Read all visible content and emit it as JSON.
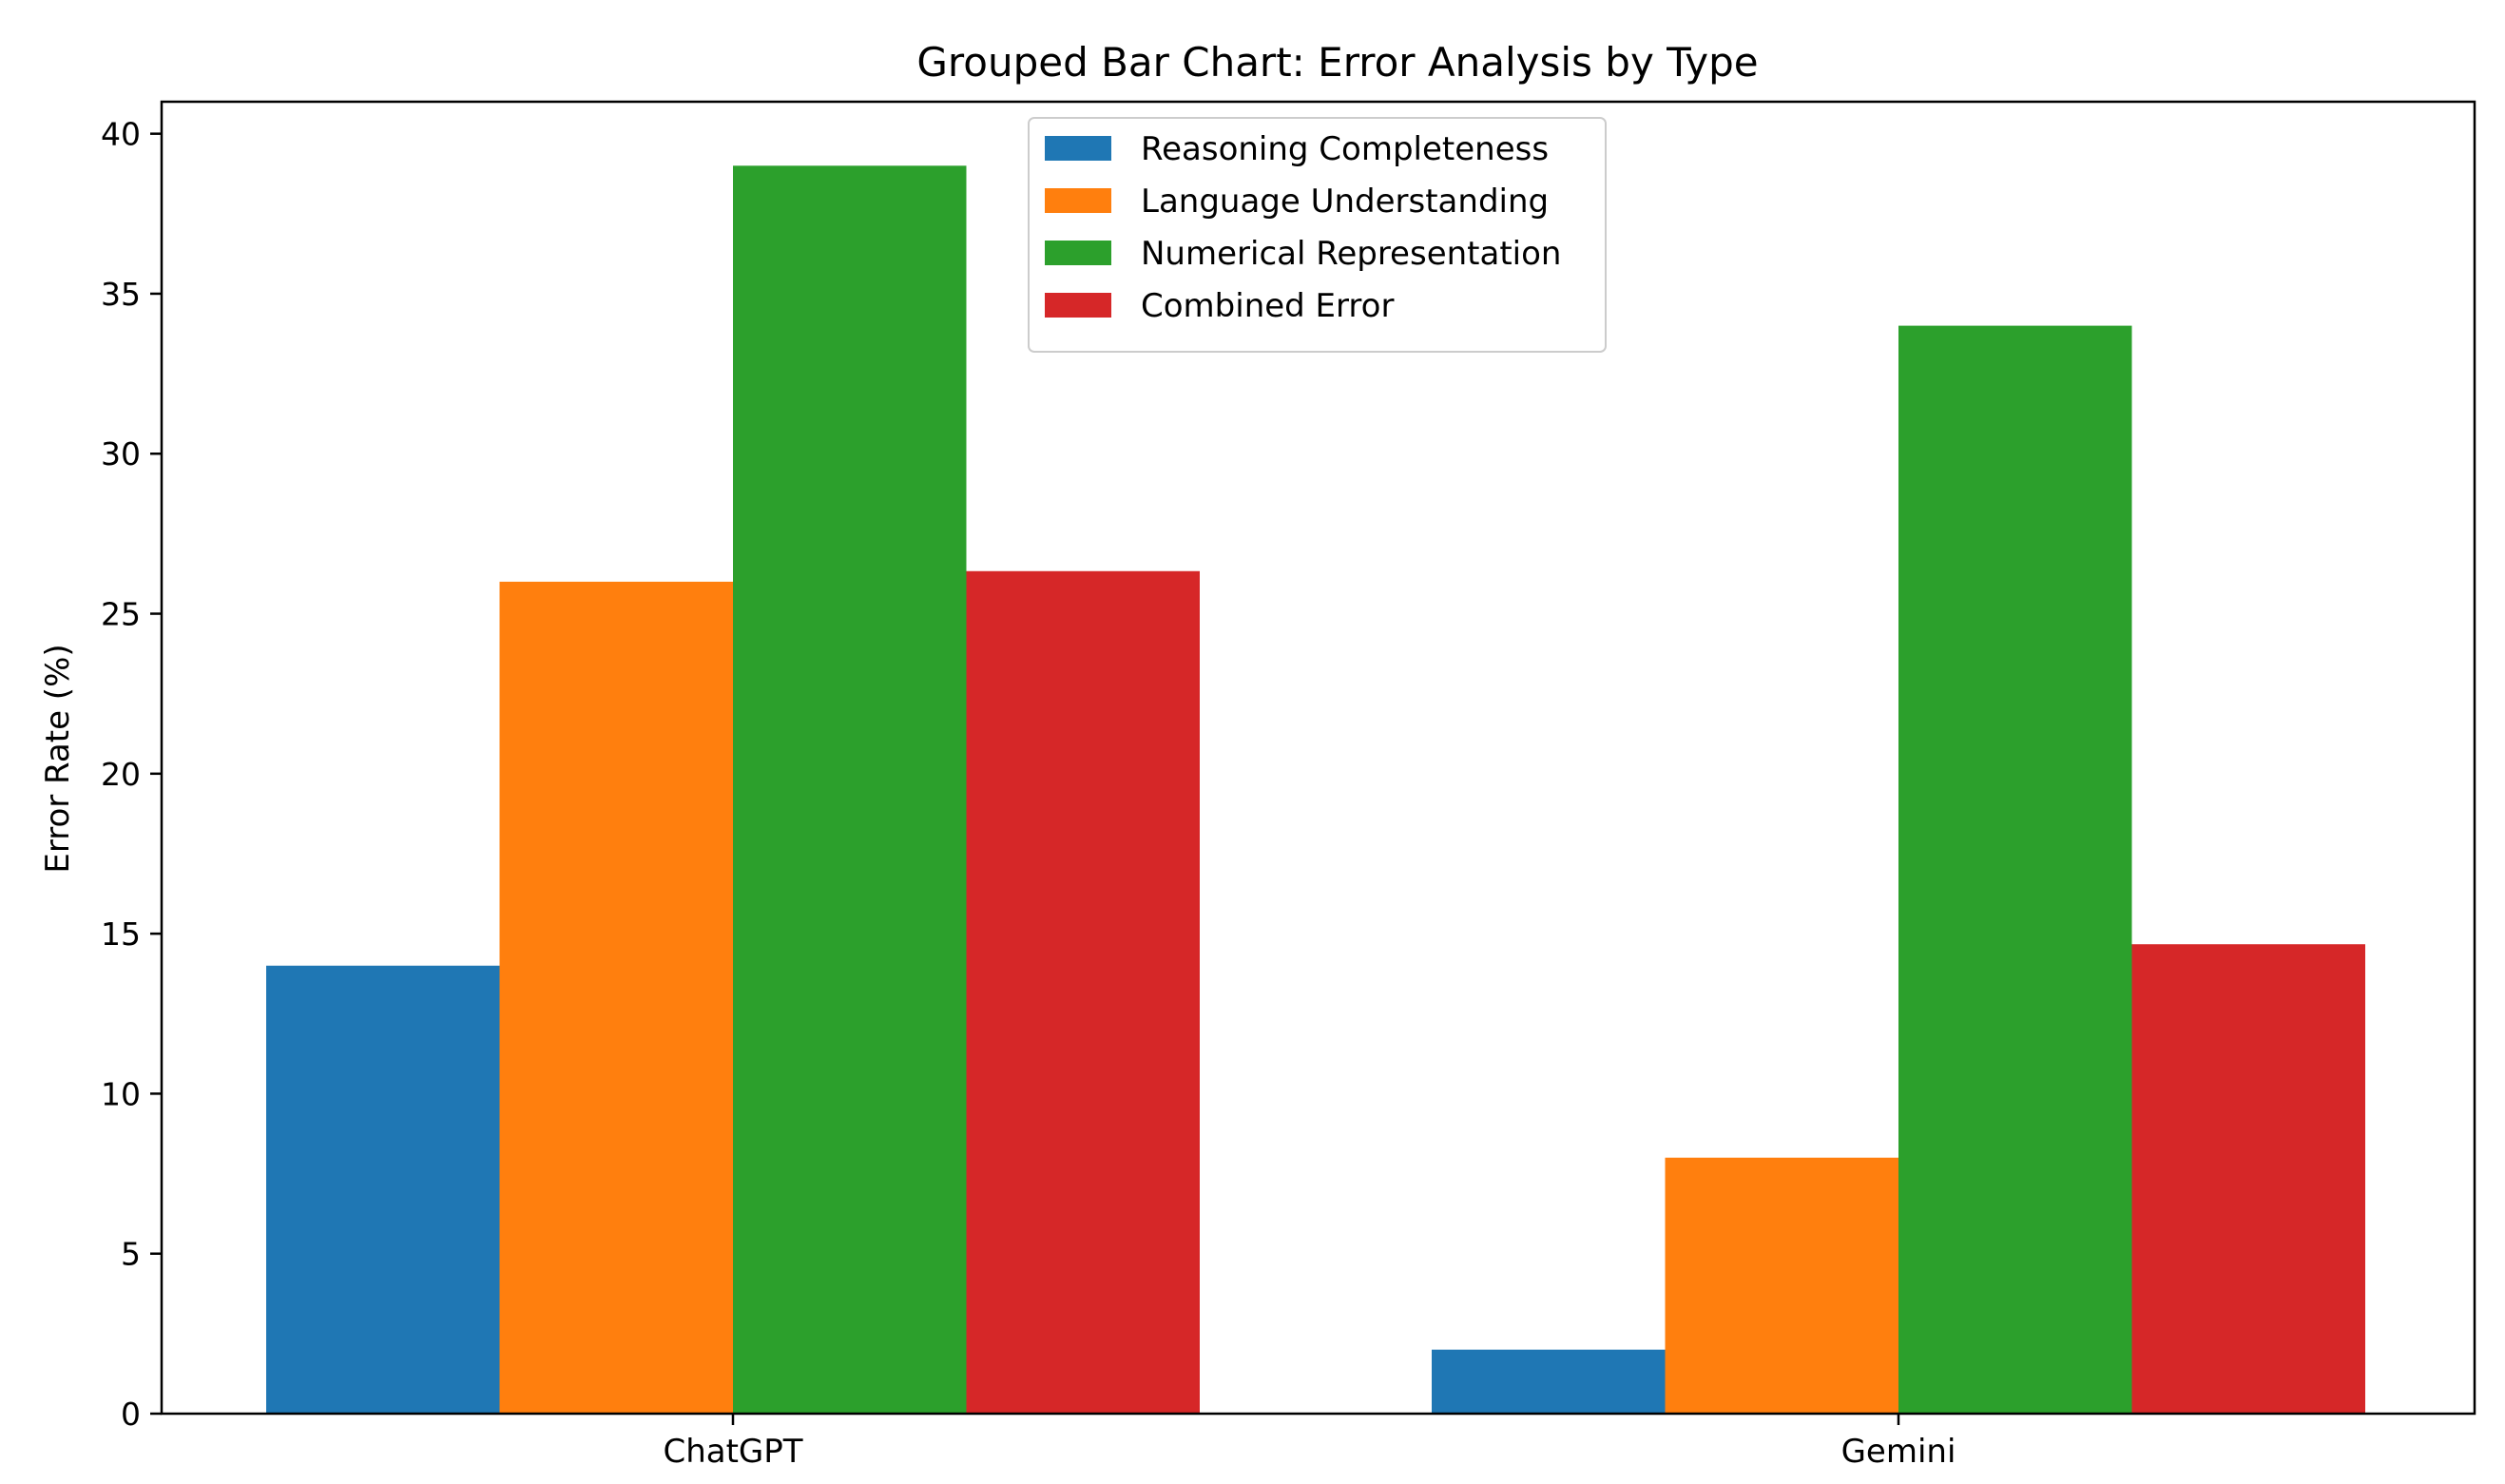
{
  "chart_data": {
    "type": "bar",
    "title": "Grouped Bar Chart: Error Analysis by Type",
    "xlabel": "",
    "ylabel": "Error Rate (%)",
    "categories": [
      "ChatGPT",
      "Gemini"
    ],
    "series": [
      {
        "name": "Reasoning Completeness",
        "values": [
          14,
          2
        ],
        "color": "#1f77b4"
      },
      {
        "name": "Language Understanding",
        "values": [
          26,
          8
        ],
        "color": "#ff7f0e"
      },
      {
        "name": "Numerical Representation",
        "values": [
          39,
          34
        ],
        "color": "#2ca02c"
      },
      {
        "name": "Combined Error",
        "values": [
          26.33,
          14.67
        ],
        "color": "#d62728"
      }
    ],
    "ylim": [
      0,
      41
    ],
    "yticks": [
      0,
      5,
      10,
      15,
      20,
      25,
      30,
      35,
      40
    ],
    "grid": false,
    "legend_position": "top-center"
  }
}
